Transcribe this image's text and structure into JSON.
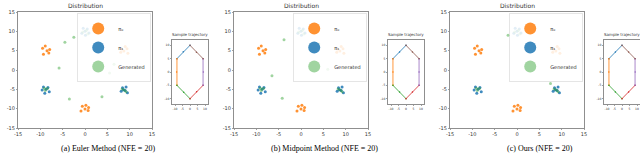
{
  "chart_data": [
    {
      "type": "scatter",
      "title": "Distribution",
      "caption": "(a) Euler Method (NFE = 20)",
      "xlim": [
        -15,
        15
      ],
      "ylim": [
        -15,
        15
      ],
      "xticks": [
        -15,
        -10,
        -5,
        0,
        5,
        10,
        15
      ],
      "yticks": [
        -15,
        -10,
        -5,
        0,
        5,
        10,
        15
      ],
      "legend": "upper right",
      "series": [
        {
          "name": "π₀",
          "color": "#ff7f0e",
          "x": [
            -9.5,
            -8.1,
            -8.9,
            -7.9,
            -9.3,
            -8.5,
            -0.6,
            0.7,
            0.2,
            -0.9,
            0.8,
            0.0,
            9.4,
            8.0,
            9.0,
            8.2,
            9.6,
            8.7
          ],
          "y": [
            5.6,
            4.4,
            6.2,
            5.3,
            4.1,
            5.0,
            -9.4,
            -10.5,
            -9.1,
            -10.6,
            -9.7,
            -10.1,
            5.5,
            4.6,
            6.1,
            5.4,
            4.3,
            4.9
          ]
        },
        {
          "name": "π₁",
          "color": "#1f77b4",
          "x": [
            0.5,
            -0.7,
            0.1,
            -0.4,
            0.9,
            0.0,
            -9.3,
            -8.0,
            -9.0,
            -8.3,
            -9.6,
            -8.7,
            9.2,
            8.1,
            9.5,
            8.4,
            9.0,
            8.6
          ],
          "y": [
            10.6,
            9.5,
            9.0,
            10.8,
            9.6,
            10.0,
            -4.4,
            -5.6,
            -6.0,
            -4.5,
            -5.2,
            -5.0,
            -4.4,
            -5.5,
            -5.9,
            -4.6,
            -5.3,
            -5.1
          ]
        },
        {
          "name": "Generated",
          "color": "#2ca02c",
          "x": [
            0.3,
            -0.5,
            0.6,
            -8.9,
            -8.4,
            -9.1,
            8.8,
            8.3,
            9.2,
            -4.5,
            3.5,
            -5.8,
            5.5,
            -3.5,
            3.8,
            -2.5,
            6.5
          ],
          "y": [
            10.2,
            9.8,
            9.3,
            -5.3,
            -4.8,
            -4.7,
            -5.2,
            -4.9,
            -5.6,
            7.2,
            7.0,
            0.5,
            -0.8,
            -7.5,
            -6.9,
            8.5,
            1.5
          ]
        }
      ],
      "inset": {
        "type": "line",
        "title": "Sample trajectory",
        "xlim": [
          -12,
          12
        ],
        "ylim": [
          -12,
          12
        ],
        "xticks": [
          -10,
          -5,
          0,
          5,
          10
        ],
        "yticks": [
          -10,
          -5,
          0,
          5,
          10
        ],
        "series": [
          {
            "color": "#1f77b4",
            "x": [
              -8.7,
              -4.5,
              0.0
            ],
            "y": [
              5.0,
              7.6,
              10.0
            ]
          },
          {
            "color": "#ff7f0e",
            "x": [
              -8.7,
              -8.9,
              -8.7
            ],
            "y": [
              5.0,
              0.0,
              -5.0
            ]
          },
          {
            "color": "#2ca02c",
            "x": [
              0.0,
              -4.2,
              -8.7
            ],
            "y": [
              -10.0,
              -7.6,
              -5.0
            ]
          },
          {
            "color": "#d62728",
            "x": [
              0.0,
              4.4,
              8.7
            ],
            "y": [
              -10.0,
              -7.4,
              -5.0
            ]
          },
          {
            "color": "#9467bd",
            "x": [
              8.7,
              8.9,
              8.7
            ],
            "y": [
              5.0,
              0.0,
              -5.0
            ]
          },
          {
            "color": "#8c564b",
            "x": [
              8.7,
              4.3,
              0.0
            ],
            "y": [
              5.0,
              7.4,
              10.0
            ]
          }
        ]
      }
    },
    {
      "type": "scatter",
      "title": "Distribution",
      "caption": "(b) Midpoint Method (NFE = 20)",
      "xlim": [
        -15,
        15
      ],
      "ylim": [
        -15,
        15
      ],
      "xticks": [
        -15,
        -10,
        -5,
        0,
        5,
        10,
        15
      ],
      "yticks": [
        -15,
        -10,
        -5,
        0,
        5,
        10,
        15
      ],
      "legend": "upper right",
      "series": [
        {
          "name": "π₀",
          "color": "#ff7f0e",
          "x": [
            -9.5,
            -8.1,
            -8.9,
            -7.9,
            -9.3,
            -8.5,
            -0.6,
            0.7,
            0.2,
            -0.9,
            0.8,
            0.0,
            9.4,
            8.0,
            9.0,
            8.2,
            9.6,
            8.7
          ],
          "y": [
            5.6,
            4.4,
            6.2,
            5.3,
            4.1,
            5.0,
            -9.4,
            -10.5,
            -9.1,
            -10.6,
            -9.7,
            -10.1,
            5.5,
            4.6,
            6.1,
            5.4,
            4.3,
            4.9
          ]
        },
        {
          "name": "π₁",
          "color": "#1f77b4",
          "x": [
            0.5,
            -0.7,
            0.1,
            -0.4,
            0.9,
            0.0,
            -9.3,
            -8.0,
            -9.0,
            -8.3,
            -9.6,
            -8.7,
            9.2,
            8.1,
            9.5,
            8.4,
            9.0,
            8.6
          ],
          "y": [
            10.6,
            9.5,
            9.0,
            10.8,
            9.6,
            10.0,
            -4.4,
            -5.6,
            -6.0,
            -4.5,
            -5.2,
            -5.0,
            -4.4,
            -5.5,
            -5.9,
            -4.6,
            -5.3,
            -5.1
          ]
        },
        {
          "name": "Generated",
          "color": "#2ca02c",
          "x": [
            0.3,
            -0.5,
            0.6,
            -8.9,
            -8.4,
            -9.1,
            8.8,
            8.3,
            9.2,
            -3.8,
            4.0,
            -6.5,
            6.0,
            -4.2
          ],
          "y": [
            10.2,
            9.8,
            9.3,
            -5.3,
            -4.8,
            -4.7,
            -5.2,
            -4.9,
            -5.6,
            7.8,
            6.8,
            -1.5,
            0.2,
            -7.3
          ]
        }
      ],
      "inset": {
        "type": "line",
        "title": "Sample trajectory",
        "xlim": [
          -12,
          12
        ],
        "ylim": [
          -12,
          12
        ],
        "xticks": [
          -10,
          -5,
          0,
          5,
          10
        ],
        "yticks": [
          -10,
          -5,
          0,
          5,
          10
        ],
        "series": [
          {
            "color": "#1f77b4",
            "x": [
              -8.7,
              -4.3,
              0.0
            ],
            "y": [
              5.0,
              7.5,
              10.0
            ]
          },
          {
            "color": "#ff7f0e",
            "x": [
              -8.7,
              -8.7,
              -8.7
            ],
            "y": [
              5.0,
              0.0,
              -5.0
            ]
          },
          {
            "color": "#2ca02c",
            "x": [
              0.0,
              -4.3,
              -8.7
            ],
            "y": [
              -10.0,
              -7.5,
              -5.0
            ]
          },
          {
            "color": "#d62728",
            "x": [
              0.0,
              4.3,
              8.7
            ],
            "y": [
              -10.0,
              -7.5,
              -5.0
            ]
          },
          {
            "color": "#9467bd",
            "x": [
              8.7,
              8.7,
              8.7
            ],
            "y": [
              5.0,
              0.0,
              -5.0
            ]
          },
          {
            "color": "#8c564b",
            "x": [
              8.7,
              4.3,
              0.0
            ],
            "y": [
              5.0,
              7.5,
              10.0
            ]
          }
        ]
      }
    },
    {
      "type": "scatter",
      "title": "Distribution",
      "caption": "(c) Ours (NFE = 20)",
      "xlim": [
        -15,
        15
      ],
      "ylim": [
        -15,
        15
      ],
      "xticks": [
        -15,
        -10,
        -5,
        0,
        5,
        10,
        15
      ],
      "yticks": [
        -15,
        -10,
        -5,
        0,
        5,
        10,
        15
      ],
      "legend": "upper right",
      "series": [
        {
          "name": "π₀",
          "color": "#ff7f0e",
          "x": [
            -9.5,
            -8.1,
            -8.9,
            -7.9,
            -9.3,
            -8.5,
            -0.6,
            0.7,
            0.2,
            -0.9,
            0.8,
            0.0,
            9.4,
            8.0,
            9.0,
            8.2,
            9.6,
            8.7
          ],
          "y": [
            5.6,
            4.4,
            6.2,
            5.3,
            4.1,
            5.0,
            -9.4,
            -10.5,
            -9.1,
            -10.6,
            -9.7,
            -10.1,
            5.5,
            4.6,
            6.1,
            5.4,
            4.3,
            4.9
          ]
        },
        {
          "name": "π₁",
          "color": "#1f77b4",
          "x": [
            0.5,
            -0.7,
            0.1,
            -0.4,
            0.9,
            0.0,
            -9.3,
            -8.0,
            -9.0,
            -8.3,
            -9.6,
            -8.7,
            9.2,
            8.1,
            9.5,
            8.4,
            9.0,
            8.6
          ],
          "y": [
            10.6,
            9.5,
            9.0,
            10.8,
            9.6,
            10.0,
            -4.4,
            -5.6,
            -6.0,
            -4.5,
            -5.2,
            -5.0,
            -4.4,
            -5.5,
            -5.9,
            -4.6,
            -5.3,
            -5.1
          ]
        },
        {
          "name": "Generated",
          "color": "#2ca02c",
          "x": [
            0.3,
            -0.5,
            0.6,
            -8.9,
            -8.4,
            -9.1,
            8.8,
            8.3,
            9.2,
            -2.0,
            7.5
          ],
          "y": [
            10.2,
            9.8,
            9.3,
            -5.3,
            -4.8,
            -4.7,
            -5.2,
            -4.9,
            -5.6,
            9.0,
            -3.5
          ]
        }
      ],
      "inset": {
        "type": "line",
        "title": "Sample trajectory",
        "xlim": [
          -12,
          12
        ],
        "ylim": [
          -12,
          12
        ],
        "xticks": [
          -10,
          -5,
          0,
          5,
          10
        ],
        "yticks": [
          -10,
          -5,
          0,
          5,
          10
        ],
        "series": [
          {
            "color": "#1f77b4",
            "x": [
              -8.7,
              -4.4,
              0.0
            ],
            "y": [
              5.0,
              7.5,
              10.0
            ]
          },
          {
            "color": "#ff7f0e",
            "x": [
              -8.7,
              -8.8,
              -8.7
            ],
            "y": [
              5.0,
              0.0,
              -5.0
            ]
          },
          {
            "color": "#2ca02c",
            "x": [
              0.0,
              -4.4,
              -8.7
            ],
            "y": [
              -10.0,
              -7.5,
              -5.0
            ]
          },
          {
            "color": "#d62728",
            "x": [
              0.0,
              4.4,
              8.7
            ],
            "y": [
              -10.0,
              -7.5,
              -5.0
            ]
          },
          {
            "color": "#9467bd",
            "x": [
              8.7,
              8.8,
              8.7
            ],
            "y": [
              5.0,
              0.0,
              -5.0
            ]
          },
          {
            "color": "#8c564b",
            "x": [
              8.7,
              4.4,
              0.0
            ],
            "y": [
              5.0,
              7.5,
              10.0
            ]
          }
        ]
      }
    }
  ]
}
